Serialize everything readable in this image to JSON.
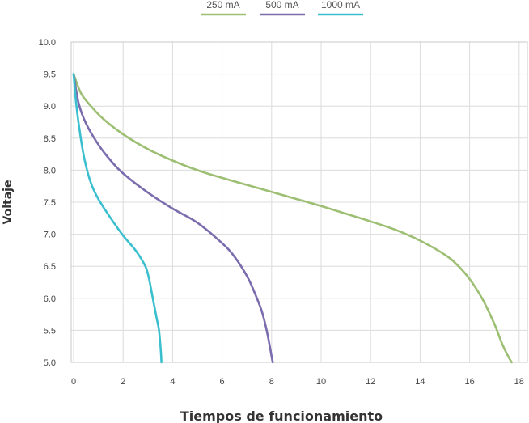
{
  "chart_data": {
    "type": "line",
    "xlabel": "Tiempos de funcionamiento",
    "ylabel": "Voltaje",
    "xlim": [
      0,
      18.5
    ],
    "ylim": [
      5.0,
      10.0
    ],
    "x_ticks": [
      "0",
      "2",
      "4",
      "6",
      "8",
      "10",
      "12",
      "14",
      "16",
      "18"
    ],
    "y_ticks": [
      "5.0",
      "5.5",
      "6.0",
      "6.5",
      "7.0",
      "7.5",
      "8.0",
      "8.5",
      "9.0",
      "9.5",
      "10.0"
    ],
    "grid": true,
    "legend_position": "top",
    "series": [
      {
        "name": "250 mA",
        "color": "#9dbf73",
        "x": [
          0,
          0.3,
          0.7,
          1.2,
          2,
          3,
          4,
          5,
          6,
          7,
          8,
          9,
          10,
          11,
          12,
          13,
          14,
          15,
          15.5,
          16,
          16.5,
          17,
          17.3,
          17.55,
          17.7
        ],
        "y": [
          9.5,
          9.2,
          9.0,
          8.8,
          8.56,
          8.33,
          8.15,
          8.0,
          7.88,
          7.77,
          7.66,
          7.55,
          7.44,
          7.32,
          7.2,
          7.07,
          6.9,
          6.68,
          6.52,
          6.3,
          6.0,
          5.6,
          5.3,
          5.1,
          5.0
        ]
      },
      {
        "name": "500 mA",
        "color": "#7b6cad",
        "x": [
          0,
          0.2,
          0.5,
          1,
          1.5,
          2,
          3,
          4,
          5,
          6,
          6.5,
          7,
          7.3,
          7.6,
          7.8,
          7.95,
          8.02,
          8.05
        ],
        "y": [
          9.5,
          9.05,
          8.73,
          8.4,
          8.15,
          7.95,
          7.65,
          7.4,
          7.18,
          6.86,
          6.65,
          6.35,
          6.1,
          5.8,
          5.5,
          5.2,
          5.05,
          5.0
        ]
      },
      {
        "name": "1000 mA",
        "color": "#3bbfcf",
        "x": [
          0,
          0.1,
          0.25,
          0.45,
          0.7,
          1,
          1.5,
          2,
          2.5,
          2.9,
          3.05,
          3.15,
          3.25,
          3.35,
          3.45,
          3.52,
          3.55
        ],
        "y": [
          9.5,
          9.05,
          8.6,
          8.15,
          7.8,
          7.55,
          7.25,
          6.98,
          6.75,
          6.5,
          6.3,
          6.1,
          5.9,
          5.7,
          5.5,
          5.2,
          5.0
        ]
      }
    ]
  }
}
